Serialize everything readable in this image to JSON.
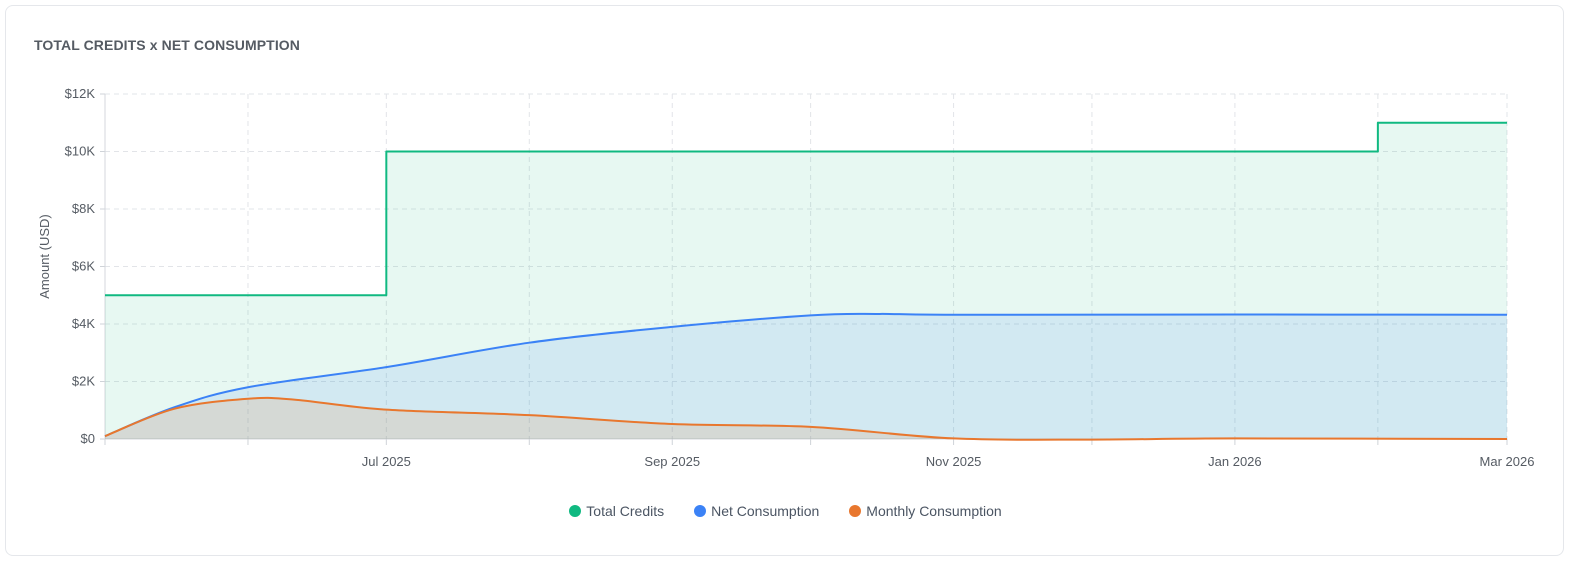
{
  "card": {
    "title": "TOTAL CREDITS x NET CONSUMPTION"
  },
  "chart_data": {
    "type": "area",
    "title": "TOTAL CREDITS x NET CONSUMPTION",
    "xlabel": "",
    "ylabel": "Amount (USD)",
    "xlim": [
      "2025-05-01",
      "2026-03-01"
    ],
    "ylim": [
      0,
      12000
    ],
    "x_ticks": [
      "Jul 2025",
      "Sep 2025",
      "Nov 2025",
      "Jan 2026",
      "Mar 2026"
    ],
    "y_ticks": [
      "$0",
      "$2K",
      "$4K",
      "$6K",
      "$8K",
      "$10K",
      "$12K"
    ],
    "grid": true,
    "legend_position": "bottom",
    "series": [
      {
        "name": "Total Credits",
        "color": "#10b981",
        "shape": "step",
        "points": [
          {
            "x": "2025-05-01",
            "y": 5000
          },
          {
            "x": "2025-07-01",
            "y": 10000
          },
          {
            "x": "2026-02-01",
            "y": 11000
          },
          {
            "x": "2026-03-01",
            "y": 11000
          }
        ]
      },
      {
        "name": "Net Consumption",
        "color": "#3b82f6",
        "shape": "smooth",
        "points": [
          {
            "x": "2025-05-01",
            "y": 100
          },
          {
            "x": "2025-05-16",
            "y": 1100
          },
          {
            "x": "2025-06-01",
            "y": 1800
          },
          {
            "x": "2025-07-01",
            "y": 2500
          },
          {
            "x": "2025-08-01",
            "y": 3350
          },
          {
            "x": "2025-09-01",
            "y": 3900
          },
          {
            "x": "2025-10-01",
            "y": 4300
          },
          {
            "x": "2025-10-16",
            "y": 4350
          },
          {
            "x": "2025-11-01",
            "y": 4320
          },
          {
            "x": "2026-01-01",
            "y": 4330
          },
          {
            "x": "2026-03-01",
            "y": 4320
          }
        ]
      },
      {
        "name": "Monthly Consumption",
        "color": "#e8772e",
        "shape": "smooth",
        "points": [
          {
            "x": "2025-05-01",
            "y": 100
          },
          {
            "x": "2025-05-16",
            "y": 1050
          },
          {
            "x": "2025-06-01",
            "y": 1400
          },
          {
            "x": "2025-06-11",
            "y": 1370
          },
          {
            "x": "2025-07-01",
            "y": 1020
          },
          {
            "x": "2025-08-01",
            "y": 830
          },
          {
            "x": "2025-09-01",
            "y": 520
          },
          {
            "x": "2025-10-01",
            "y": 420
          },
          {
            "x": "2025-11-01",
            "y": 20
          },
          {
            "x": "2025-12-01",
            "y": -20
          },
          {
            "x": "2026-01-01",
            "y": 20
          },
          {
            "x": "2026-03-01",
            "y": 0
          }
        ]
      }
    ]
  }
}
